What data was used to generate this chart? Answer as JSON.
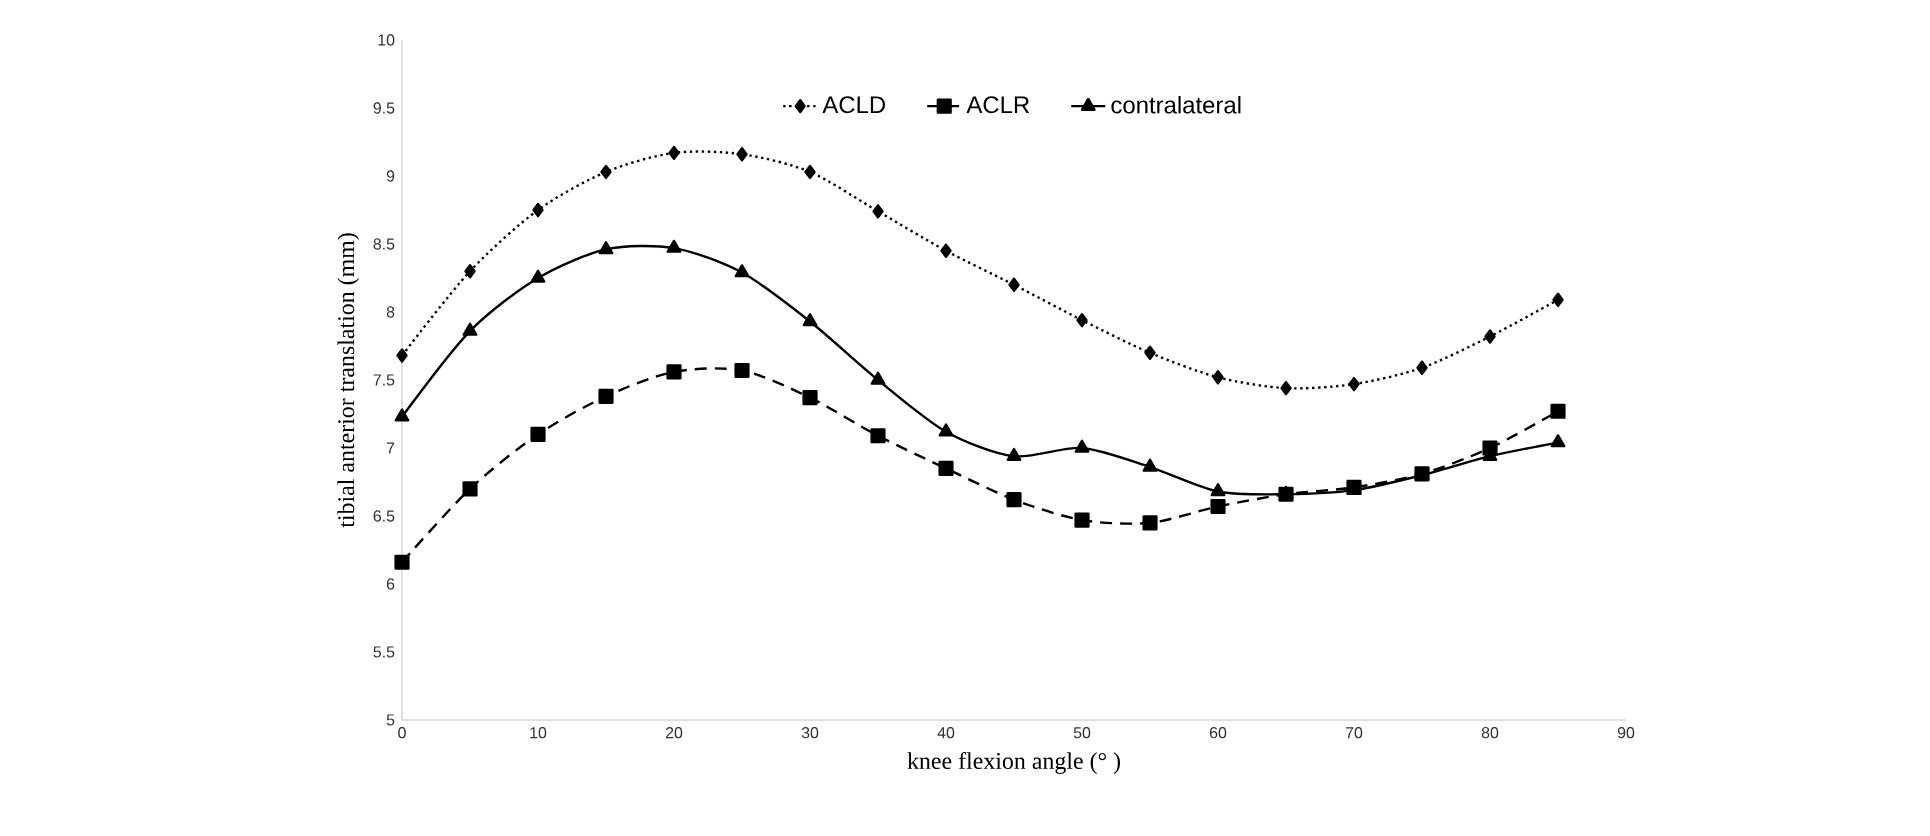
{
  "chart_data": {
    "type": "line",
    "xlabel": "knee flexion angle (° )",
    "ylabel": "tibial anterior translation (mm)",
    "x": [
      0,
      5,
      10,
      15,
      20,
      25,
      30,
      35,
      40,
      45,
      50,
      55,
      60,
      65,
      70,
      75,
      80,
      85
    ],
    "series": [
      {
        "name": "ACLD",
        "color": "#000000",
        "marker": "diamond",
        "line_style": "dotted",
        "values": [
          7.68,
          8.3,
          8.75,
          9.03,
          9.17,
          9.16,
          9.03,
          8.74,
          8.45,
          8.2,
          7.94,
          7.7,
          7.52,
          7.44,
          7.47,
          7.59,
          7.82,
          8.09
        ]
      },
      {
        "name": "ACLR",
        "color": "#000000",
        "marker": "square",
        "line_style": "dashed",
        "values": [
          6.16,
          6.7,
          7.1,
          7.38,
          7.56,
          7.57,
          7.37,
          7.09,
          6.85,
          6.62,
          6.47,
          6.45,
          6.57,
          6.66,
          6.71,
          6.81,
          7.0,
          7.27
        ]
      },
      {
        "name": "contralateral",
        "color": "#000000",
        "marker": "triangle",
        "line_style": "solid",
        "values": [
          7.23,
          7.86,
          8.25,
          8.46,
          8.47,
          8.29,
          7.93,
          7.5,
          7.12,
          6.94,
          7.0,
          6.86,
          6.68,
          6.66,
          6.69,
          6.8,
          6.94,
          7.04
        ]
      }
    ],
    "xlim": [
      0,
      90
    ],
    "xticks": [
      0,
      10,
      20,
      30,
      40,
      50,
      60,
      70,
      80,
      90
    ],
    "ylim": [
      5,
      10
    ],
    "yticks": [
      5,
      5.5,
      6,
      6.5,
      7,
      7.5,
      8,
      8.5,
      9,
      9.5,
      10
    ],
    "grid": false,
    "legend": "top"
  }
}
